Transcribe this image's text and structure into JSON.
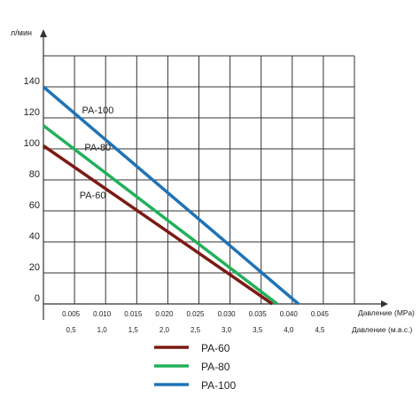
{
  "chart_data": {
    "type": "line",
    "ylabel": "л/мин",
    "xlabel_primary": "Давление (МРа)",
    "xlabel_secondary": "Давление (м.в.с.)",
    "xlim": [
      0,
      0.05
    ],
    "ylim": [
      0,
      160
    ],
    "y_ticks": [
      0,
      20,
      40,
      60,
      80,
      100,
      120,
      140
    ],
    "x_ticks": [
      "0.005",
      "0.010",
      "0.015",
      "0.020",
      "0.025",
      "0.030",
      "0.035",
      "0.040",
      "0.045"
    ],
    "x_ticks_values": [
      0.005,
      0.01,
      0.015,
      0.02,
      0.025,
      0.03,
      0.035,
      0.04,
      0.045
    ],
    "x2_ticks": [
      "0,5",
      "1,0",
      "1,5",
      "2,0",
      "2,5",
      "3,0",
      "3,5",
      "4,0",
      "4,5"
    ],
    "grid": true,
    "series": [
      {
        "name": "PA-60",
        "label": "PA-60",
        "color": "#7b1a14",
        "x": [
          0,
          0.0368
        ],
        "y": [
          102,
          0
        ]
      },
      {
        "name": "PA-80",
        "label": "PA-80",
        "color": "#22b05a",
        "x": [
          0,
          0.0376
        ],
        "y": [
          115,
          0
        ]
      },
      {
        "name": "PA-100",
        "label": "PA-100",
        "color": "#1f73b5",
        "x": [
          0,
          0.041
        ],
        "y": [
          140,
          0
        ]
      }
    ],
    "legend": {
      "placement": "bottom",
      "items": [
        "PA-60",
        "PA-80",
        "PA-100"
      ]
    }
  }
}
